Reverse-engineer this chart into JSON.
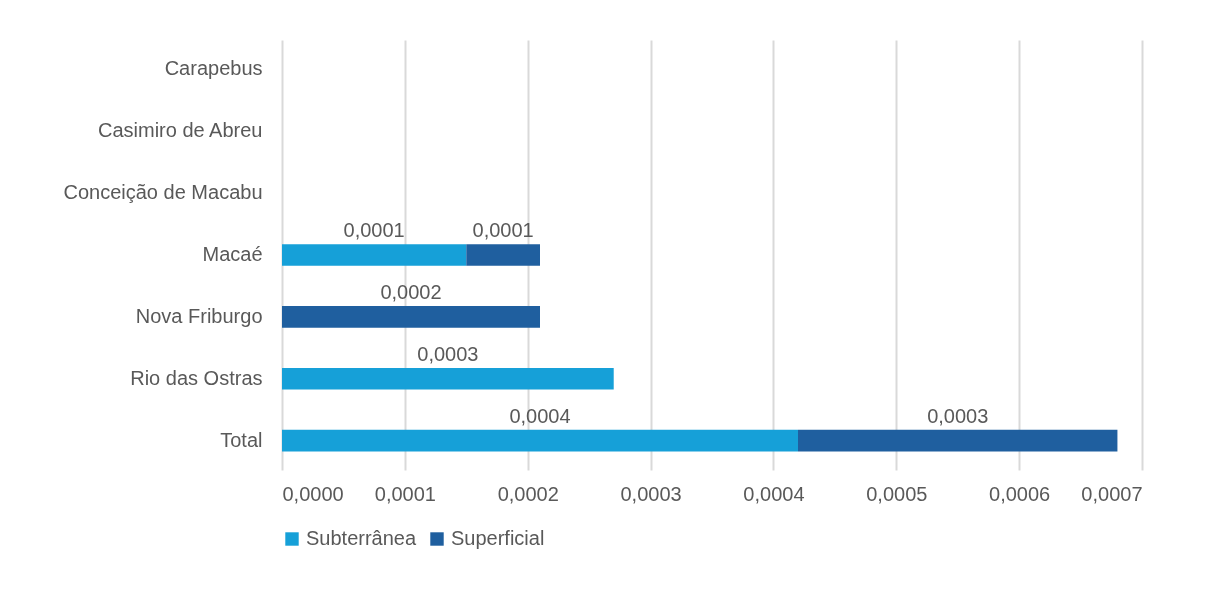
{
  "chart_data": {
    "type": "bar",
    "orientation": "horizontal",
    "stacked": true,
    "categories": [
      "Carapebus",
      "Casimiro de Abreu",
      "Conceição de Macabu",
      "Macaé",
      "Nova Friburgo",
      "Rio das Ostras",
      "Total"
    ],
    "series": [
      {
        "name": "Subterrânea",
        "color": "#16a0d8",
        "values": [
          null,
          null,
          null,
          0.00015,
          null,
          0.00027,
          0.00042
        ],
        "value_labels": [
          null,
          null,
          null,
          "0,0001",
          null,
          "0,0003",
          "0,0004"
        ]
      },
      {
        "name": "Superficial",
        "color": "#1f5f9f",
        "values": [
          null,
          null,
          null,
          6e-05,
          0.00021,
          null,
          0.00026
        ],
        "value_labels": [
          null,
          null,
          null,
          "0,0001",
          "0,0002",
          null,
          "0,0003"
        ]
      }
    ],
    "xlim": [
      0,
      0.0007
    ],
    "xticks": [
      {
        "value": 0,
        "label": "0,0000"
      },
      {
        "value": 0.0001,
        "label": "0,0001"
      },
      {
        "value": 0.0002,
        "label": "0,0002"
      },
      {
        "value": 0.0003,
        "label": "0,0003"
      },
      {
        "value": 0.0004,
        "label": "0,0004"
      },
      {
        "value": 0.0005,
        "label": "0,0005"
      },
      {
        "value": 0.0006,
        "label": "0,0006"
      },
      {
        "value": 0.0007,
        "label": "0,0007"
      }
    ],
    "grid": "x",
    "legend": "bottom"
  }
}
